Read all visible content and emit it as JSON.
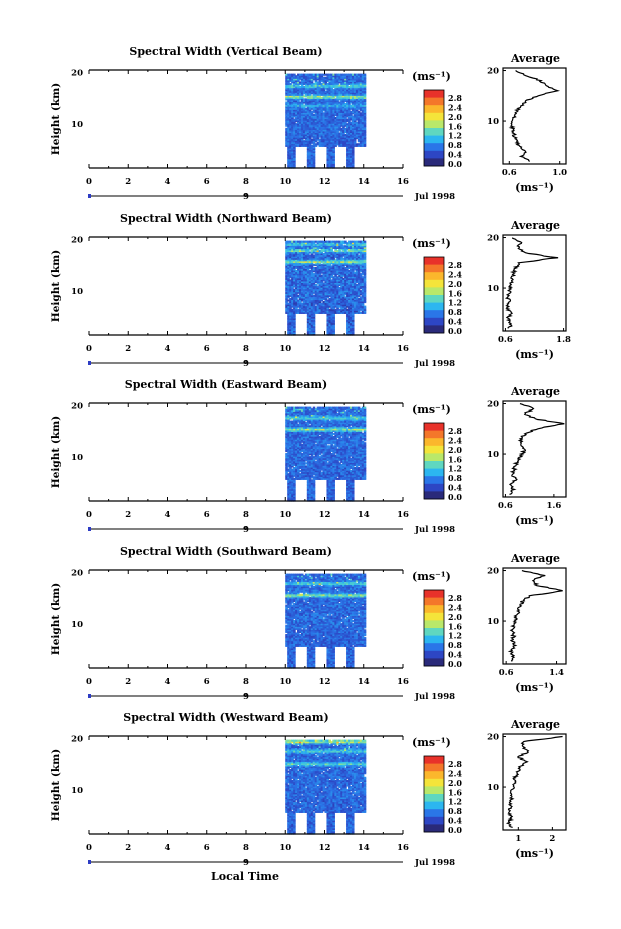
{
  "figure": {
    "xlabel": "Local Time",
    "ylabel": "Height (km)",
    "unit": "(ms⁻¹)",
    "avg_title": "Average",
    "date_label": "Jul 1998",
    "day_label": "9",
    "colorbar": {
      "ticks": [
        "2.8",
        "2.4",
        "2.0",
        "1.6",
        "1.2",
        "0.8",
        "0.4",
        "0.0"
      ],
      "colors": [
        "#e8322a",
        "#f4772a",
        "#fbb72c",
        "#f4e43a",
        "#b9e86a",
        "#5fd7c0",
        "#2cb6f0",
        "#2a76e8",
        "#2d46c4",
        "#2a2a7a"
      ]
    },
    "time_ticks": [
      "0",
      "2",
      "4",
      "6",
      "8",
      "10",
      "12",
      "14",
      "16"
    ],
    "height_ticks": [
      "20",
      "10"
    ]
  },
  "chart_data": [
    {
      "type": "heatmap",
      "title": "Spectral Width (Vertical Beam)",
      "xlabel": "Local Time",
      "ylabel": "Height (km)",
      "xlim": [
        0,
        16
      ],
      "ylim": [
        1.5,
        20.5
      ],
      "x_ticks": [
        0,
        2,
        4,
        6,
        8,
        10,
        12,
        14,
        16
      ],
      "x_tick_labels": [
        "0",
        "2",
        "4",
        "6",
        "8",
        "10",
        "12",
        "14",
        "16"
      ],
      "data_x_range": [
        10,
        14
      ],
      "data_y_range": [
        1.5,
        19.8
      ],
      "value_range": [
        0,
        3.0
      ],
      "noise": 0.25,
      "bands": [
        {
          "h": 15.2,
          "v": 1.5
        },
        {
          "h": 17.3,
          "v": 1.0
        },
        {
          "h": 13.5,
          "v": 0.6
        }
      ],
      "average_profile": {
        "title": "Average",
        "xlabel": "(ms⁻¹)",
        "xlim": [
          0.55,
          1.05
        ],
        "x_ticks": [
          0.6,
          1.0
        ],
        "x_tick_labels": [
          "0.6",
          "1.0"
        ],
        "y_ticks": [
          10,
          20
        ],
        "y_tick_labels": [
          "10",
          "20"
        ],
        "height": [
          2,
          3,
          4,
          5,
          6,
          7,
          8,
          9,
          10,
          11,
          12,
          13,
          14,
          15,
          16,
          17,
          18,
          19,
          20
        ],
        "value": [
          0.76,
          0.7,
          0.74,
          0.68,
          0.66,
          0.64,
          0.63,
          0.62,
          0.63,
          0.64,
          0.66,
          0.7,
          0.74,
          0.82,
          0.98,
          0.9,
          0.84,
          0.74,
          0.65
        ]
      }
    },
    {
      "type": "heatmap",
      "title": "Spectral Width (Northward Beam)",
      "xlabel": "Local Time",
      "ylabel": "Height (km)",
      "xlim": [
        0,
        16
      ],
      "ylim": [
        1.5,
        20.5
      ],
      "x_ticks": [
        0,
        2,
        4,
        6,
        8,
        10,
        12,
        14,
        16
      ],
      "x_tick_labels": [
        "0",
        "2",
        "4",
        "6",
        "8",
        "10",
        "12",
        "14",
        "16"
      ],
      "data_x_range": [
        10,
        14
      ],
      "data_y_range": [
        1.5,
        19.8
      ],
      "value_range": [
        0,
        3.0
      ],
      "noise": 0.3,
      "bands": [
        {
          "h": 15.6,
          "v": 1.5
        },
        {
          "h": 17.8,
          "v": 1.1
        },
        {
          "h": 19.0,
          "v": 0.9
        }
      ],
      "average_profile": {
        "title": "Average",
        "xlabel": "(ms⁻¹)",
        "xlim": [
          0.55,
          1.85
        ],
        "x_ticks": [
          0.6,
          1.8
        ],
        "x_tick_labels": [
          "0.6",
          "1.8"
        ],
        "y_ticks": [
          10,
          20
        ],
        "y_tick_labels": [
          "10",
          "20"
        ],
        "height": [
          2,
          3,
          4,
          5,
          6,
          7,
          8,
          9,
          10,
          11,
          12,
          13,
          14,
          15,
          16,
          17,
          18,
          19,
          20
        ],
        "value": [
          0.68,
          0.72,
          0.66,
          0.7,
          0.64,
          0.67,
          0.66,
          0.68,
          0.7,
          0.72,
          0.74,
          0.76,
          0.8,
          0.9,
          1.65,
          1.0,
          0.85,
          0.9,
          0.75
        ]
      }
    },
    {
      "type": "heatmap",
      "title": "Spectral Width (Eastward Beam)",
      "xlabel": "Local Time",
      "ylabel": "Height (km)",
      "xlim": [
        0,
        16
      ],
      "ylim": [
        1.5,
        20.5
      ],
      "x_ticks": [
        0,
        2,
        4,
        6,
        8,
        10,
        12,
        14,
        16
      ],
      "x_tick_labels": [
        "0",
        "2",
        "4",
        "6",
        "8",
        "10",
        "12",
        "14",
        "16"
      ],
      "data_x_range": [
        10,
        14
      ],
      "data_y_range": [
        1.5,
        19.8
      ],
      "value_range": [
        0,
        3.0
      ],
      "noise": 0.25,
      "bands": [
        {
          "h": 15.3,
          "v": 1.5
        },
        {
          "h": 17.5,
          "v": 1.0
        }
      ],
      "average_profile": {
        "title": "Average",
        "xlabel": "(ms⁻¹)",
        "xlim": [
          0.55,
          1.85
        ],
        "x_ticks": [
          0.6,
          1.6
        ],
        "x_tick_labels": [
          "0.6",
          "1.6"
        ],
        "y_ticks": [
          10,
          20
        ],
        "y_tick_labels": [
          "10",
          "20"
        ],
        "height": [
          2,
          3,
          4,
          5,
          6,
          7,
          8,
          9,
          10,
          11,
          12,
          13,
          14,
          15,
          16,
          17,
          18,
          19,
          20
        ],
        "value": [
          0.7,
          0.76,
          0.72,
          0.8,
          0.74,
          0.78,
          0.82,
          0.86,
          0.95,
          1.0,
          0.9,
          0.92,
          1.0,
          1.25,
          1.8,
          1.2,
          1.0,
          1.2,
          0.9
        ]
      }
    },
    {
      "type": "heatmap",
      "title": "Spectral Width (Southward Beam)",
      "xlabel": "Local Time",
      "ylabel": "Height (km)",
      "xlim": [
        0,
        16
      ],
      "ylim": [
        1.5,
        20.5
      ],
      "x_ticks": [
        0,
        2,
        4,
        6,
        8,
        10,
        12,
        14,
        16
      ],
      "x_tick_labels": [
        "0",
        "2",
        "4",
        "6",
        "8",
        "10",
        "12",
        "14",
        "16"
      ],
      "data_x_range": [
        10,
        14
      ],
      "data_y_range": [
        1.5,
        19.8
      ],
      "value_range": [
        0,
        3.0
      ],
      "noise": 0.25,
      "bands": [
        {
          "h": 15.5,
          "v": 1.4
        },
        {
          "h": 17.8,
          "v": 1.0
        }
      ],
      "average_profile": {
        "title": "Average",
        "xlabel": "(ms⁻¹)",
        "xlim": [
          0.55,
          1.55
        ],
        "x_ticks": [
          0.6,
          1.4
        ],
        "x_tick_labels": [
          "0.6",
          "1.4"
        ],
        "y_ticks": [
          10,
          20
        ],
        "y_tick_labels": [
          "10",
          "20"
        ],
        "height": [
          2,
          3,
          4,
          5,
          6,
          7,
          8,
          9,
          10,
          11,
          12,
          13,
          14,
          15,
          16,
          17,
          18,
          19,
          20
        ],
        "value": [
          0.7,
          0.72,
          0.68,
          0.74,
          0.7,
          0.72,
          0.7,
          0.72,
          0.74,
          0.76,
          0.8,
          0.82,
          0.86,
          0.98,
          1.5,
          1.1,
          1.0,
          1.2,
          0.85
        ]
      }
    },
    {
      "type": "heatmap",
      "title": "Spectral Width (Westward Beam)",
      "xlabel": "Local Time",
      "ylabel": "Height (km)",
      "xlim": [
        0,
        16
      ],
      "ylim": [
        1.5,
        20.5
      ],
      "x_ticks": [
        0,
        2,
        4,
        6,
        8,
        10,
        12,
        14,
        16
      ],
      "x_tick_labels": [
        "0",
        "2",
        "4",
        "6",
        "8",
        "10",
        "12",
        "14",
        "16"
      ],
      "data_x_range": [
        10,
        14
      ],
      "data_y_range": [
        1.5,
        19.8
      ],
      "value_range": [
        0,
        3.0
      ],
      "noise": 0.25,
      "bands": [
        {
          "h": 15.0,
          "v": 1.1
        },
        {
          "h": 17.5,
          "v": 1.0
        },
        {
          "h": 19.3,
          "v": 1.6
        }
      ],
      "average_profile": {
        "title": "Average",
        "xlabel": "(ms⁻¹)",
        "xlim": [
          0.55,
          2.4
        ],
        "x_ticks": [
          1,
          2
        ],
        "x_tick_labels": [
          "1",
          "2"
        ],
        "y_ticks": [
          10,
          20
        ],
        "y_tick_labels": [
          "10",
          "20"
        ],
        "height": [
          2,
          3,
          4,
          5,
          6,
          7,
          8,
          9,
          10,
          11,
          12,
          13,
          14,
          15,
          16,
          17,
          18,
          19,
          20
        ],
        "value": [
          0.78,
          0.72,
          0.8,
          0.74,
          0.76,
          0.78,
          0.8,
          0.82,
          0.84,
          0.88,
          0.92,
          0.98,
          1.05,
          1.25,
          1.0,
          1.3,
          1.1,
          1.15,
          2.3
        ]
      }
    }
  ]
}
